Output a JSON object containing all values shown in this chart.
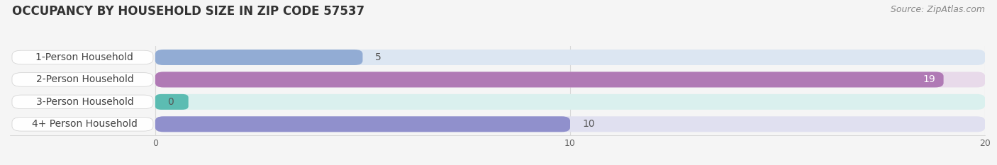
{
  "title": "OCCUPANCY BY HOUSEHOLD SIZE IN ZIP CODE 57537",
  "source": "Source: ZipAtlas.com",
  "categories": [
    "1-Person Household",
    "2-Person Household",
    "3-Person Household",
    "4+ Person Household"
  ],
  "values": [
    5,
    19,
    0,
    10
  ],
  "bar_colors": [
    "#92acd4",
    "#b07ab5",
    "#5cbcb2",
    "#9090cc"
  ],
  "bar_bg_colors": [
    "#dce6f2",
    "#e8daea",
    "#daf0ee",
    "#e0e0f0"
  ],
  "xlim": [
    0,
    20
  ],
  "xticks": [
    0,
    10,
    20
  ],
  "background_color": "#f5f5f5",
  "title_fontsize": 12,
  "source_fontsize": 9,
  "bar_label_fontsize": 10,
  "tick_fontsize": 9,
  "category_fontsize": 10,
  "bar_height": 0.7,
  "label_pill_color": "#ffffff",
  "grid_color": "#d8d8d8"
}
